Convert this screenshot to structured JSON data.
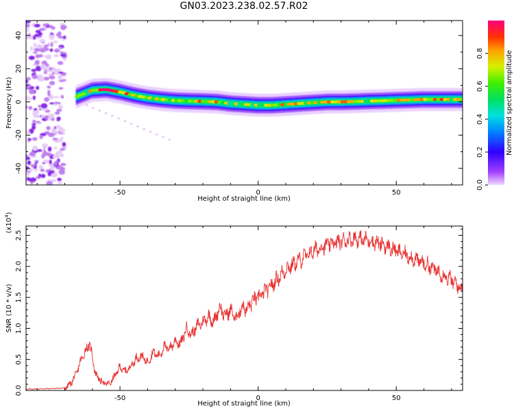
{
  "title": "GN03.2023.238.02.57.R02",
  "colors": {
    "snr_line": "#e83030",
    "signal_core": "#e82060",
    "scatter": "#a040e0"
  },
  "chart_data": [
    {
      "type": "heatmap",
      "xlabel": "Height of straight line (km)",
      "ylabel": "Frequency (Hz)",
      "xlim": [
        -84,
        74
      ],
      "ylim": [
        -50,
        49
      ],
      "xticks": [
        -50,
        0,
        50
      ],
      "xtick_labels": [
        "-50",
        "0",
        "50"
      ],
      "yticks": [
        -40,
        -20,
        0,
        20,
        40
      ],
      "ytick_labels": [
        "-40",
        "-20",
        "0",
        "20",
        "40"
      ],
      "colorbar": {
        "label": "Normalized spectral amplitude",
        "range": [
          0,
          1
        ],
        "ticks": [
          0.0,
          0.2,
          0.4,
          0.6,
          0.8
        ],
        "tick_labels": [
          "0.0",
          "0.2",
          "0.4",
          "0.6",
          "0.8"
        ],
        "colormap": "hsv-rainbow"
      },
      "ridge": {
        "x": [
          -66,
          -60,
          -55,
          -50,
          -45,
          -40,
          -35,
          -30,
          -25,
          -20,
          -15,
          -10,
          -5,
          0,
          5,
          10,
          15,
          20,
          25,
          30,
          35,
          40,
          45,
          50,
          55,
          60,
          65,
          70,
          74
        ],
        "freq": [
          3,
          7,
          7.5,
          6,
          4,
          2.5,
          1.5,
          0.8,
          0.5,
          0.3,
          0,
          -1,
          -1.5,
          -2,
          -2,
          -1.5,
          -1,
          -0.5,
          0,
          0,
          0.2,
          0.5,
          0.7,
          1,
          1.2,
          1.5,
          1.5,
          1.5,
          1.5
        ],
        "amplitude": [
          0.5,
          0.7,
          0.9,
          0.8,
          0.75,
          0.7,
          0.7,
          0.65,
          0.7,
          0.75,
          0.7,
          0.6,
          0.6,
          0.65,
          0.7,
          0.7,
          0.75,
          0.7,
          0.75,
          0.75,
          0.7,
          0.65,
          0.65,
          0.7,
          0.7,
          0.75,
          0.75,
          0.7,
          0.7
        ]
      },
      "noise_region_x": [
        -84,
        -70
      ]
    },
    {
      "type": "line",
      "xlabel": "Height of straight line (km)",
      "ylabel": "SNR (10 * v/v)",
      "y_multiplier_label": "(x10",
      "y_multiplier_exp": "4",
      "xlim": [
        -84,
        74
      ],
      "ylim": [
        0,
        2.65
      ],
      "xticks": [
        -50,
        0,
        50
      ],
      "xtick_labels": [
        "-50",
        "0",
        "50"
      ],
      "yticks": [
        0.0,
        0.5,
        1.0,
        1.5,
        2.0,
        2.5
      ],
      "ytick_labels": [
        "0.0",
        "0.5",
        "1.0",
        "1.5",
        "2.0",
        "2.5"
      ],
      "series": [
        {
          "x": [
            -84,
            -75,
            -70,
            -68,
            -66,
            -64,
            -62,
            -61,
            -60,
            -59,
            -58,
            -56,
            -54,
            -52,
            -50,
            -48,
            -46,
            -44,
            -42,
            -40,
            -38,
            -36,
            -34,
            -32,
            -30,
            -28,
            -26,
            -24,
            -22,
            -20,
            -18,
            -16,
            -14,
            -12,
            -10,
            -8,
            -6,
            -4,
            -2,
            0,
            5,
            10,
            15,
            20,
            25,
            30,
            35,
            40,
            45,
            50,
            55,
            60,
            65,
            70,
            74
          ],
          "y": [
            0.02,
            0.03,
            0.04,
            0.1,
            0.25,
            0.5,
            0.68,
            0.75,
            0.55,
            0.3,
            0.2,
            0.12,
            0.1,
            0.22,
            0.38,
            0.3,
            0.4,
            0.52,
            0.55,
            0.45,
            0.62,
            0.55,
            0.7,
            0.68,
            0.8,
            0.75,
            1.0,
            0.9,
            1.05,
            1.1,
            1.2,
            1.1,
            1.35,
            1.2,
            1.3,
            1.15,
            1.35,
            1.3,
            1.45,
            1.5,
            1.7,
            1.95,
            2.1,
            2.25,
            2.35,
            2.4,
            2.45,
            2.42,
            2.35,
            2.25,
            2.15,
            2.05,
            1.92,
            1.78,
            1.62
          ]
        }
      ]
    }
  ]
}
